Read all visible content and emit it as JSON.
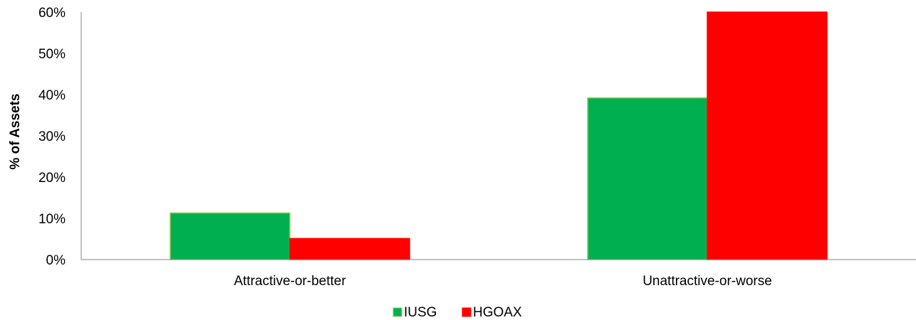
{
  "chart_data": {
    "type": "bar",
    "categories": [
      "Attractive-or-better",
      "Unattractive-or-worse"
    ],
    "series": [
      {
        "name": "IUSG",
        "values": [
          11.3,
          39.2
        ],
        "color": "#00b050",
        "border": "#92d050"
      },
      {
        "name": "HGOAX",
        "values": [
          5.1,
          60.5
        ],
        "color": "#ff0000",
        "border": "#ff0000"
      }
    ],
    "title": "",
    "xlabel": "",
    "ylabel": "% of Assets",
    "ylim": [
      0,
      60
    ],
    "yticks": [
      "0%",
      "10%",
      "20%",
      "30%",
      "40%",
      "50%",
      "60%"
    ],
    "grid": false,
    "legend_position": "bottom"
  }
}
